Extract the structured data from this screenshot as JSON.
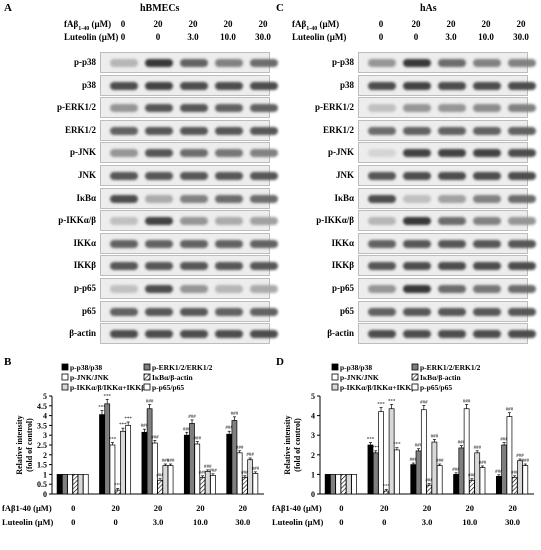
{
  "panels": {
    "A": {
      "letter": "A",
      "title": "hBMECs"
    },
    "B": {
      "letter": "B"
    },
    "C": {
      "letter": "C",
      "title": "hAs"
    },
    "D": {
      "letter": "D"
    }
  },
  "conditions": {
    "fab_label": "fAβ",
    "fab_sub": "1-40",
    "fab_unit": " (μM)",
    "lut_label": "Luteolin (μM)",
    "fab_values": [
      "0",
      "20",
      "20",
      "20",
      "20"
    ],
    "lut_values": [
      "0",
      "0",
      "3.0",
      "10.0",
      "30.0"
    ]
  },
  "blot_rows": [
    "p-p38",
    "p38",
    "p-ERK1/2",
    "ERK1/2",
    "p-JNK",
    "JNK",
    "IκBα",
    "p-IKKα/β",
    "IKKα",
    "IKKβ",
    "p-p65",
    "p65",
    "β-actin"
  ],
  "legend": {
    "b": [
      "p-p38/p38",
      "p-ERK1/2/ERK1/2",
      "p-JNK/JNK",
      "IκBα/β-actin",
      "p-IKKα/β/IKKα+IKKβ",
      "p-p65/p65"
    ],
    "d": [
      "p-p38/p38",
      "p-ERK1/2/ERK1/2",
      "p-JNK/JNK",
      "IκBα/β-actin",
      "p-IKKα/β/IKKα+IKKβ",
      "p-p65/p65"
    ]
  },
  "chart_data": [
    {
      "type": "bar",
      "panel": "B",
      "ylabel": "Relative intensity\n(fold of control)",
      "ylim": [
        0,
        5
      ],
      "yticks": [
        "0",
        "0.5",
        "1",
        "1.5",
        "2",
        "2.5",
        "3",
        "3.5",
        "4",
        "4.5",
        "5"
      ],
      "categories": [
        "0/0",
        "20/0",
        "20/3.0",
        "20/10.0",
        "20/30.0"
      ],
      "series": [
        {
          "name": "p-p38/p38",
          "values": [
            1.0,
            4.05,
            3.15,
            3.0,
            3.05
          ]
        },
        {
          "name": "p-ERK1/2/ERK1/2",
          "values": [
            1.0,
            4.6,
            4.35,
            3.6,
            3.75
          ]
        },
        {
          "name": "p-JNK/JNK",
          "values": [
            1.0,
            2.5,
            2.6,
            2.55,
            2.1
          ]
        },
        {
          "name": "IκBα/β-actin",
          "values": [
            1.0,
            0.2,
            0.7,
            0.85,
            0.85
          ]
        },
        {
          "name": "p-IKKα/β/IKKα+IKKβ",
          "values": [
            1.0,
            3.2,
            1.45,
            1.15,
            1.75
          ]
        },
        {
          "name": "p-p65/p65",
          "values": [
            1.0,
            3.5,
            1.45,
            0.95,
            1.05
          ]
        }
      ],
      "annotations": [
        "***",
        "###"
      ]
    },
    {
      "type": "bar",
      "panel": "D",
      "ylabel": "Relative intensity\n(fold of control)",
      "ylim": [
        0,
        5
      ],
      "yticks": [
        "0",
        "1",
        "2",
        "3",
        "4",
        "5"
      ],
      "categories": [
        "0/0",
        "20/0",
        "20/3.0",
        "20/10.0",
        "20/30.0"
      ],
      "series": [
        {
          "name": "p-p38/p38",
          "values": [
            1.0,
            2.5,
            1.5,
            1.0,
            0.9
          ]
        },
        {
          "name": "p-ERK1/2/ERK1/2",
          "values": [
            1.0,
            2.1,
            2.2,
            2.35,
            2.5
          ]
        },
        {
          "name": "p-JNK/JNK",
          "values": [
            1.0,
            4.2,
            4.3,
            4.35,
            3.95
          ]
        },
        {
          "name": "IκBα/β-actin",
          "values": [
            1.0,
            0.15,
            0.45,
            0.7,
            0.85
          ]
        },
        {
          "name": "p-IKKα/β/IKKα+IKKβ",
          "values": [
            1.0,
            4.35,
            2.65,
            2.1,
            1.7
          ]
        },
        {
          "name": "p-p65/p65",
          "values": [
            1.0,
            2.25,
            1.45,
            1.35,
            1.45
          ]
        }
      ],
      "annotations": [
        "***",
        "###"
      ]
    }
  ]
}
